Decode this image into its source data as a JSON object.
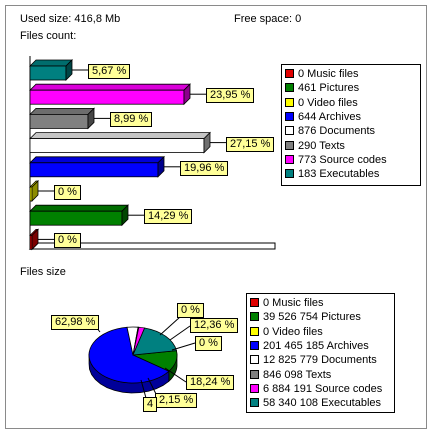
{
  "header": {
    "used_size": "Used size: 416,8 Mb",
    "free_space": "Free space: 0",
    "files_count_title": "Files count:",
    "files_size_title": "Files size"
  },
  "colors": {
    "music": "#e00000",
    "pictures": "#008000",
    "video": "#ffff00",
    "archives": "#0000ff",
    "documents": "#ffffff",
    "texts": "#808080",
    "source": "#ff00ff",
    "executables": "#008080",
    "label_bg": "#ffff99"
  },
  "chart_data": [
    {
      "type": "bar",
      "title": "Files count:",
      "orientation": "horizontal",
      "categories": [
        "Executables",
        "Source codes",
        "Texts",
        "Documents",
        "Archives",
        "Video files",
        "Pictures",
        "Music files"
      ],
      "values": [
        183,
        773,
        290,
        876,
        644,
        0,
        461,
        0
      ],
      "percent_labels": [
        "5,67 %",
        "23,95 %",
        "8,99 %",
        "27,15 %",
        "19,96 %",
        "0 %",
        "14,29 %",
        "0 %"
      ],
      "legend": [
        {
          "text": "0 Music files",
          "color": "#e00000"
        },
        {
          "text": "461 Pictures",
          "color": "#008000"
        },
        {
          "text": "0 Video files",
          "color": "#ffff00"
        },
        {
          "text": "644 Archives",
          "color": "#0000ff"
        },
        {
          "text": "876 Documents",
          "color": "#ffffff"
        },
        {
          "text": "290 Texts",
          "color": "#808080"
        },
        {
          "text": "773 Source codes",
          "color": "#ff00ff"
        },
        {
          "text": "183 Executables",
          "color": "#008080"
        }
      ]
    },
    {
      "type": "pie",
      "title": "Files size",
      "slices": [
        {
          "name": "Music files",
          "value": 0,
          "color": "#e00000"
        },
        {
          "name": "Pictures",
          "value": 39526754,
          "color": "#008000"
        },
        {
          "name": "Video files",
          "value": 0,
          "color": "#ffff00"
        },
        {
          "name": "Archives",
          "value": 201465185,
          "color": "#0000ff"
        },
        {
          "name": "Documents",
          "value": 12825779,
          "color": "#ffffff"
        },
        {
          "name": "Texts",
          "value": 846098,
          "color": "#808080"
        },
        {
          "name": "Source codes",
          "value": 6884191,
          "color": "#ff00ff"
        },
        {
          "name": "Executables",
          "value": 58340108,
          "color": "#008080"
        }
      ],
      "percent_labels": [
        "62,98 %",
        "0 %",
        "12,36 %",
        "0 %",
        "18,24 %",
        "2,15 %",
        "4"
      ],
      "legend": [
        {
          "text": "0 Music files",
          "color": "#e00000"
        },
        {
          "text": "39 526 754 Pictures",
          "color": "#008000"
        },
        {
          "text": "0 Video files",
          "color": "#ffff00"
        },
        {
          "text": "201 465 185 Archives",
          "color": "#0000ff"
        },
        {
          "text": "12 825 779 Documents",
          "color": "#ffffff"
        },
        {
          "text": "846 098 Texts",
          "color": "#808080"
        },
        {
          "text": "6 884 191 Source codes",
          "color": "#ff00ff"
        },
        {
          "text": "58 340 108 Executables",
          "color": "#008080"
        }
      ]
    }
  ]
}
